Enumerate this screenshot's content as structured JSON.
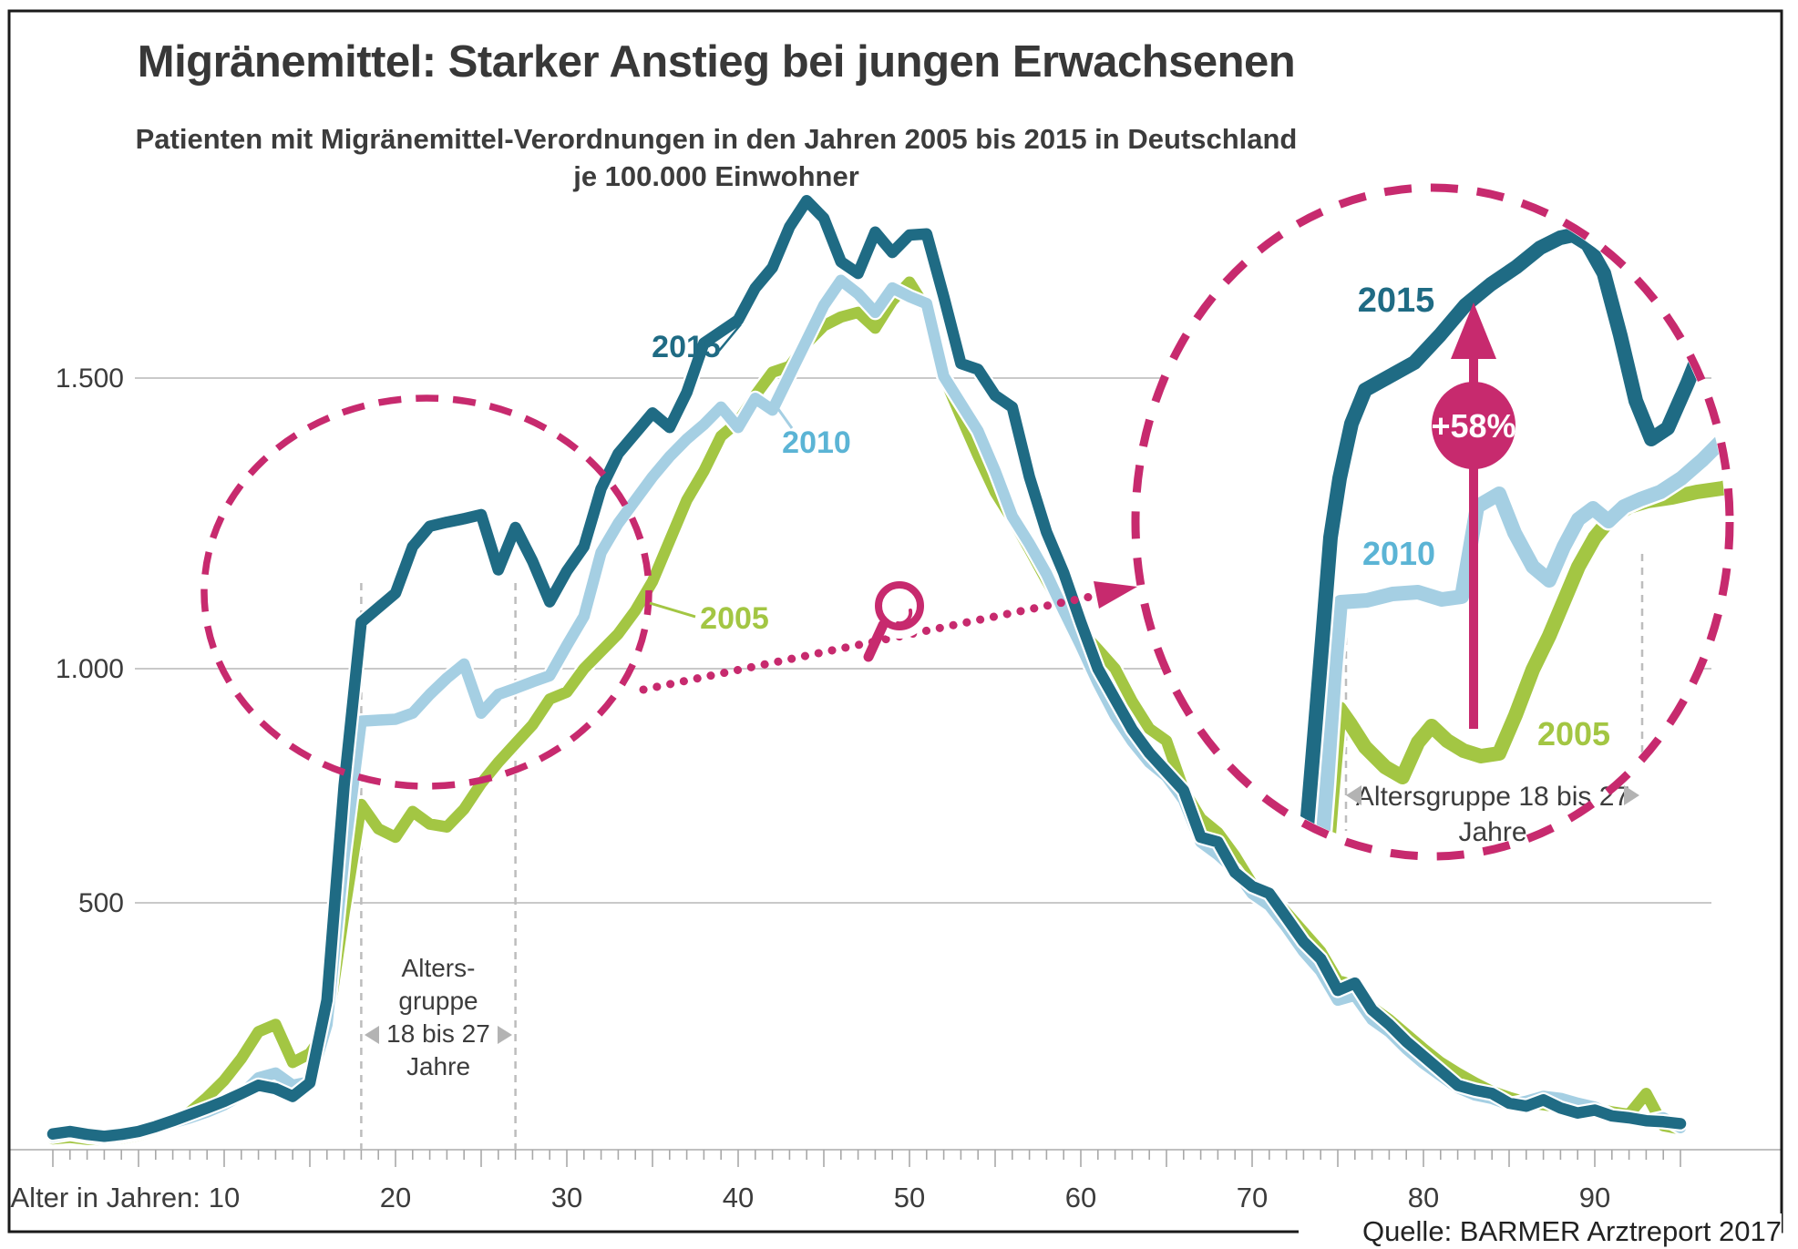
{
  "header": {
    "title": "Migränemittel: Starker Anstieg bei jungen Erwachsenen",
    "subtitle_line1": "Patienten mit Migränemittel-Verordnungen in den Jahren 2005 bis 2015 in Deutschland",
    "subtitle_line2": "je 100.000 Einwohner"
  },
  "source": {
    "label": "Quelle: BARMER Arztreport 2017"
  },
  "axes": {
    "x_prefix": "Alter in Jahren:",
    "x_ticks": [
      10,
      20,
      30,
      40,
      50,
      60,
      70,
      80,
      90
    ],
    "y_ticks": [
      {
        "label": "500",
        "value": 500
      },
      {
        "label": "1.000",
        "value": 1000
      },
      {
        "label": "1.500",
        "value": 1500
      }
    ]
  },
  "annotations": {
    "main_agegroup_lines": [
      "Alters-",
      "gruppe",
      "18 bis 27",
      "Jahre"
    ],
    "inset_agegroup_lines": [
      "Altersgruppe 18 bis 27",
      "Jahre"
    ],
    "increase_badge": "+58%",
    "series_labels": {
      "s2015": "2015",
      "s2010": "2010",
      "s2005": "2005"
    }
  },
  "colors": {
    "teal": "#1f6b84",
    "lightblue": "#a5cfe3",
    "green": "#a3c643",
    "pink": "#c72a6e",
    "grid": "#c9c9c9",
    "axis": "#c0c0c0",
    "tick": "#a8a8a8",
    "dash_guide": "#bdbdbd",
    "triangle": "#b3b3b3",
    "text_dark": "#3c3c3c"
  },
  "chart_data": {
    "type": "line",
    "title": "Migränemittel: Starker Anstieg bei jungen Erwachsenen",
    "xlabel": "Alter in Jahren",
    "ylabel": "Patienten mit Migränemittel-Verordnungen je 100.000 Einwohner",
    "x_range": [
      0,
      95
    ],
    "ylim": [
      0,
      1900
    ],
    "grid": "horizontal",
    "highlight": {
      "age_from": 18,
      "age_to": 27,
      "change_2005_to_2015": "+58%"
    },
    "x": "ages 0..95 (step 1)",
    "series": [
      {
        "name": "2015",
        "color": "#1f6b84",
        "values": [
          25,
          30,
          24,
          20,
          24,
          30,
          40,
          52,
          65,
          78,
          92,
          108,
          125,
          118,
          102,
          130,
          300,
          750,
          1080,
          1105,
          1130,
          1210,
          1245,
          1252,
          1258,
          1265,
          1170,
          1243,
          1185,
          1115,
          1168,
          1210,
          1310,
          1370,
          1405,
          1440,
          1415,
          1475,
          1560,
          1580,
          1600,
          1655,
          1690,
          1760,
          1805,
          1775,
          1700,
          1680,
          1751,
          1716,
          1746,
          1748,
          1640,
          1525,
          1515,
          1470,
          1450,
          1330,
          1235,
          1165,
          1080,
          1000,
          935,
          870,
          820,
          780,
          740,
          640,
          630,
          565,
          535,
          520,
          470,
          420,
          385,
          320,
          335,
          280,
          250,
          215,
          185,
          155,
          125,
          115,
          108,
          88,
          82,
          95,
          78,
          68,
          74,
          62,
          58,
          52,
          50,
          46
        ]
      },
      {
        "name": "2010",
        "color": "#a5cfe3",
        "values": [
          20,
          26,
          20,
          16,
          20,
          26,
          36,
          48,
          58,
          70,
          85,
          105,
          140,
          150,
          125,
          132,
          250,
          600,
          888,
          890,
          892,
          905,
          945,
          980,
          1008,
          905,
          945,
          958,
          972,
          985,
          1040,
          1090,
          1200,
          1250,
          1290,
          1330,
          1365,
          1395,
          1420,
          1450,
          1415,
          1465,
          1445,
          1505,
          1565,
          1625,
          1668,
          1645,
          1613,
          1655,
          1640,
          1628,
          1503,
          1456,
          1409,
          1340,
          1262,
          1215,
          1163,
          1100,
          1040,
          970,
          900,
          845,
          800,
          770,
          720,
          630,
          603,
          570,
          520,
          495,
          450,
          400,
          360,
          300,
          310,
          260,
          235,
          200,
          170,
          145,
          120,
          105,
          98,
          85,
          92,
          102,
          98,
          88,
          80,
          62,
          55,
          50,
          58,
          38
        ]
      },
      {
        "name": "2005",
        "color": "#a3c643",
        "values": [
          15,
          18,
          14,
          13,
          16,
          22,
          32,
          48,
          70,
          100,
          135,
          180,
          235,
          250,
          172,
          190,
          240,
          480,
          710,
          658,
          640,
          695,
          668,
          662,
          700,
          755,
          800,
          840,
          880,
          935,
          950,
          1000,
          1030,
          1060,
          1100,
          1150,
          1220,
          1290,
          1340,
          1400,
          1425,
          1470,
          1510,
          1520,
          1560,
          1590,
          1605,
          1613,
          1586,
          1633,
          1665,
          1618,
          1503,
          1434,
          1367,
          1304,
          1257,
          1206,
          1152,
          1100,
          1065,
          1033,
          1000,
          930,
          872,
          846,
          741,
          680,
          650,
          600,
          540,
          520,
          480,
          440,
          400,
          340,
          330,
          285,
          260,
          230,
          200,
          172,
          150,
          130,
          112,
          100,
          90,
          85,
          80,
          70,
          78,
          70,
          65,
          108,
          42,
          35
        ]
      }
    ]
  }
}
